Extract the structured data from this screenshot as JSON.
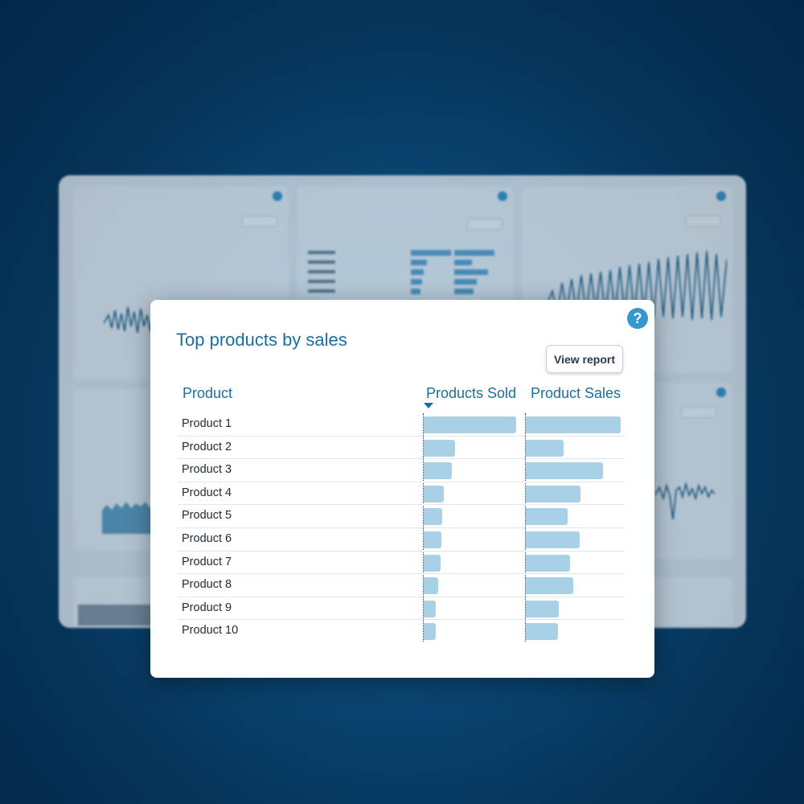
{
  "widget": {
    "title": "Top products by sales",
    "view_report_label": "View report",
    "help_icon_label": "?"
  },
  "columns": {
    "product": "Product",
    "products_sold": "Products Sold",
    "product_sales": "Product Sales"
  },
  "rows": [
    {
      "name": "Product 1",
      "sold": 1.0,
      "sales": 1.0
    },
    {
      "name": "Product 2",
      "sold": 0.34,
      "sales": 0.4
    },
    {
      "name": "Product 3",
      "sold": 0.3,
      "sales": 0.81
    },
    {
      "name": "Product 4",
      "sold": 0.22,
      "sales": 0.58
    },
    {
      "name": "Product 5",
      "sold": 0.2,
      "sales": 0.44
    },
    {
      "name": "Product 6",
      "sold": 0.19,
      "sales": 0.57
    },
    {
      "name": "Product 7",
      "sold": 0.18,
      "sales": 0.47
    },
    {
      "name": "Product 8",
      "sold": 0.16,
      "sales": 0.5
    },
    {
      "name": "Product 9",
      "sold": 0.13,
      "sales": 0.35
    },
    {
      "name": "Product 10",
      "sold": 0.13,
      "sales": 0.34
    }
  ],
  "colors": {
    "accent": "#1b6f9e",
    "bar": "#a8d1e6",
    "help": "#3498cf",
    "background": "#053256"
  }
}
